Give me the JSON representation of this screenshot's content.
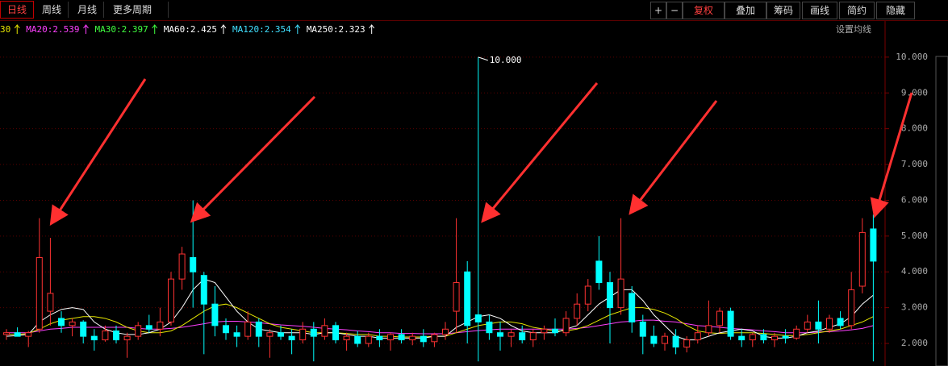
{
  "toolbar": {
    "left_tabs": [
      "日线",
      "周线",
      "月线",
      "更多周期"
    ],
    "right_buttons": [
      "+",
      "−",
      "复权",
      "叠加",
      "筹码",
      "画线",
      "简约",
      "隐藏"
    ]
  },
  "ma_legend": [
    {
      "text": "30",
      "color": "#e6e600"
    },
    {
      "text": "MA20:2.539",
      "color": "#ff40ff"
    },
    {
      "text": "MA30:2.397",
      "color": "#40ff40"
    },
    {
      "text": "MA60:2.425",
      "color": "#ffffff"
    },
    {
      "text": "MA120:2.354",
      "color": "#40e0ff"
    },
    {
      "text": "MA250:2.323",
      "color": "#ffffff"
    }
  ],
  "ma_settings": "设置均线",
  "chart_data": {
    "type": "candlestick",
    "up_color": "#ff3232",
    "down_color": "#00ffff",
    "peak_label": "10.000",
    "ylim": [
      1.37,
      10.47
    ],
    "yticks": [
      {
        "value": 2,
        "label": "2.000"
      },
      {
        "value": 3,
        "label": "3.000"
      },
      {
        "value": 4,
        "label": "4.000"
      },
      {
        "value": 5,
        "label": "5.000"
      },
      {
        "value": 6,
        "label": "6.000"
      },
      {
        "value": 7,
        "label": "7.000"
      },
      {
        "value": 8,
        "label": "8.000"
      },
      {
        "value": 9,
        "label": "9.000"
      },
      {
        "value": 10,
        "label": "10.000"
      }
    ],
    "grid": true,
    "candles": [
      [
        2.25,
        2.4,
        2.1,
        2.3
      ],
      [
        2.3,
        2.45,
        2.2,
        2.2
      ],
      [
        2.2,
        2.35,
        1.9,
        2.3
      ],
      [
        2.4,
        5.5,
        2.3,
        4.4
      ],
      [
        2.9,
        4.95,
        2.5,
        3.4
      ],
      [
        2.7,
        2.9,
        2.3,
        2.5
      ],
      [
        2.5,
        2.7,
        2.2,
        2.6
      ],
      [
        2.6,
        2.65,
        2.0,
        2.2
      ],
      [
        2.2,
        2.4,
        1.8,
        2.1
      ],
      [
        2.1,
        2.5,
        2.05,
        2.35
      ],
      [
        2.35,
        2.5,
        2.0,
        2.1
      ],
      [
        2.1,
        2.3,
        1.6,
        2.2
      ],
      [
        2.2,
        2.6,
        2.1,
        2.5
      ],
      [
        2.5,
        2.8,
        2.3,
        2.4
      ],
      [
        2.4,
        3.0,
        2.2,
        2.6
      ],
      [
        2.6,
        4.0,
        2.5,
        3.8
      ],
      [
        3.8,
        4.7,
        3.5,
        4.5
      ],
      [
        4.4,
        6.0,
        3.0,
        4.0
      ],
      [
        3.9,
        4.0,
        1.7,
        3.1
      ],
      [
        3.1,
        3.6,
        2.2,
        2.5
      ],
      [
        2.5,
        2.7,
        2.1,
        2.3
      ],
      [
        2.3,
        2.5,
        1.9,
        2.2
      ],
      [
        2.2,
        2.9,
        2.1,
        2.6
      ],
      [
        2.6,
        2.7,
        1.9,
        2.2
      ],
      [
        2.2,
        2.4,
        1.6,
        2.3
      ],
      [
        2.3,
        2.5,
        2.1,
        2.2
      ],
      [
        2.2,
        2.4,
        1.7,
        2.1
      ],
      [
        2.1,
        2.6,
        2.0,
        2.4
      ],
      [
        2.4,
        2.6,
        1.5,
        2.2
      ],
      [
        2.2,
        2.7,
        2.1,
        2.5
      ],
      [
        2.5,
        2.6,
        2.0,
        2.1
      ],
      [
        2.1,
        2.3,
        1.8,
        2.2
      ],
      [
        2.2,
        2.35,
        1.9,
        2.0
      ],
      [
        2.0,
        2.3,
        1.9,
        2.2
      ],
      [
        2.2,
        2.4,
        1.9,
        2.1
      ],
      [
        2.1,
        2.3,
        1.8,
        2.25
      ],
      [
        2.25,
        2.4,
        2.0,
        2.1
      ],
      [
        2.1,
        2.3,
        1.95,
        2.2
      ],
      [
        2.2,
        2.4,
        1.9,
        2.05
      ],
      [
        2.05,
        2.3,
        1.9,
        2.25
      ],
      [
        2.25,
        2.6,
        2.1,
        2.4
      ],
      [
        2.9,
        5.5,
        2.3,
        3.7
      ],
      [
        4.0,
        4.3,
        2.0,
        2.5
      ],
      [
        2.8,
        10.0,
        1.5,
        2.6
      ],
      [
        2.6,
        2.8,
        2.1,
        2.3
      ],
      [
        2.3,
        2.6,
        1.8,
        2.2
      ],
      [
        2.2,
        2.4,
        1.9,
        2.3
      ],
      [
        2.3,
        2.5,
        2.0,
        2.1
      ],
      [
        2.1,
        2.4,
        1.9,
        2.3
      ],
      [
        2.3,
        2.5,
        2.1,
        2.4
      ],
      [
        2.4,
        2.7,
        2.2,
        2.3
      ],
      [
        2.3,
        2.9,
        2.2,
        2.7
      ],
      [
        2.7,
        3.4,
        2.5,
        3.1
      ],
      [
        3.1,
        3.8,
        2.9,
        3.6
      ],
      [
        4.3,
        5.0,
        3.5,
        3.7
      ],
      [
        3.7,
        4.0,
        2.0,
        3.0
      ],
      [
        3.0,
        5.5,
        2.8,
        3.8
      ],
      [
        3.4,
        3.6,
        2.3,
        2.6
      ],
      [
        2.6,
        2.8,
        1.7,
        2.2
      ],
      [
        2.2,
        2.5,
        1.9,
        2.0
      ],
      [
        2.0,
        2.3,
        1.8,
        2.2
      ],
      [
        2.2,
        2.4,
        1.7,
        1.9
      ],
      [
        1.9,
        2.2,
        1.75,
        2.1
      ],
      [
        2.1,
        2.5,
        2.0,
        2.3
      ],
      [
        2.3,
        3.2,
        2.2,
        2.5
      ],
      [
        2.5,
        3.0,
        2.3,
        2.9
      ],
      [
        2.9,
        3.0,
        2.1,
        2.2
      ],
      [
        2.2,
        2.4,
        1.9,
        2.1
      ],
      [
        2.1,
        2.3,
        1.9,
        2.25
      ],
      [
        2.25,
        2.4,
        2.0,
        2.1
      ],
      [
        2.1,
        2.3,
        1.9,
        2.2
      ],
      [
        2.2,
        2.4,
        2.0,
        2.15
      ],
      [
        2.15,
        2.5,
        2.1,
        2.4
      ],
      [
        2.4,
        2.8,
        2.3,
        2.6
      ],
      [
        2.6,
        3.2,
        2.0,
        2.4
      ],
      [
        2.4,
        2.8,
        2.3,
        2.7
      ],
      [
        2.7,
        2.9,
        2.4,
        2.5
      ],
      [
        2.5,
        4.0,
        2.4,
        3.5
      ],
      [
        3.6,
        5.5,
        3.4,
        5.1
      ],
      [
        5.2,
        5.6,
        1.5,
        4.3
      ]
    ],
    "ma_lines": [
      {
        "color": "#ff40ff",
        "values": [
          2.3,
          2.3,
          2.3,
          2.35,
          2.4,
          2.42,
          2.45,
          2.45,
          2.45,
          2.45,
          2.45,
          2.45,
          2.42,
          2.4,
          2.4,
          2.42,
          2.45,
          2.5,
          2.55,
          2.6,
          2.62,
          2.62,
          2.6,
          2.58,
          2.55,
          2.52,
          2.5,
          2.48,
          2.45,
          2.42,
          2.4,
          2.38,
          2.35,
          2.33,
          2.3,
          2.3,
          2.28,
          2.28,
          2.27,
          2.27,
          2.27,
          2.3,
          2.33,
          2.36,
          2.38,
          2.4,
          2.4,
          2.4,
          2.4,
          2.4,
          2.4,
          2.4,
          2.42,
          2.45,
          2.5,
          2.55,
          2.6,
          2.62,
          2.65,
          2.65,
          2.62,
          2.6,
          2.55,
          2.5,
          2.48,
          2.45,
          2.42,
          2.4,
          2.38,
          2.35,
          2.33,
          2.3,
          2.3,
          2.3,
          2.32,
          2.33,
          2.35,
          2.38,
          2.42,
          2.5
        ]
      },
      {
        "color": "#e6e600",
        "values": [
          2.25,
          2.25,
          2.28,
          2.4,
          2.55,
          2.65,
          2.7,
          2.75,
          2.75,
          2.7,
          2.6,
          2.45,
          2.35,
          2.3,
          2.3,
          2.35,
          2.5,
          2.7,
          2.9,
          3.05,
          3.1,
          3.0,
          2.85,
          2.7,
          2.55,
          2.45,
          2.4,
          2.35,
          2.3,
          2.3,
          2.3,
          2.28,
          2.25,
          2.25,
          2.2,
          2.2,
          2.18,
          2.18,
          2.18,
          2.2,
          2.2,
          2.3,
          2.4,
          2.5,
          2.55,
          2.6,
          2.6,
          2.55,
          2.45,
          2.4,
          2.35,
          2.35,
          2.4,
          2.5,
          2.65,
          2.8,
          2.9,
          3.0,
          3.0,
          2.95,
          2.85,
          2.7,
          2.5,
          2.35,
          2.3,
          2.28,
          2.3,
          2.3,
          2.3,
          2.28,
          2.25,
          2.22,
          2.22,
          2.25,
          2.3,
          2.35,
          2.4,
          2.5,
          2.6,
          2.75
        ]
      },
      {
        "color": "#ffffff",
        "values": [
          2.2,
          2.22,
          2.25,
          2.6,
          2.8,
          2.95,
          3.0,
          2.95,
          2.6,
          2.4,
          2.3,
          2.25,
          2.25,
          2.3,
          2.4,
          2.6,
          3.0,
          3.5,
          3.8,
          3.7,
          3.3,
          2.9,
          2.6,
          2.4,
          2.35,
          2.3,
          2.3,
          2.3,
          2.25,
          2.3,
          2.3,
          2.25,
          2.2,
          2.2,
          2.15,
          2.15,
          2.15,
          2.15,
          2.15,
          2.2,
          2.2,
          2.45,
          2.6,
          2.75,
          2.8,
          2.7,
          2.5,
          2.35,
          2.3,
          2.3,
          2.3,
          2.4,
          2.5,
          2.8,
          3.1,
          3.3,
          3.5,
          3.5,
          3.2,
          2.8,
          2.5,
          2.2,
          2.1,
          2.1,
          2.2,
          2.3,
          2.35,
          2.4,
          2.35,
          2.2,
          2.15,
          2.15,
          2.2,
          2.3,
          2.35,
          2.45,
          2.55,
          2.75,
          3.1,
          3.35
        ]
      }
    ]
  }
}
